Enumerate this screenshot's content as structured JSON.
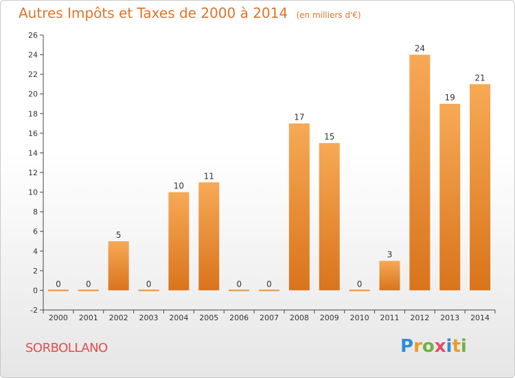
{
  "header": {
    "title": "Autres Impôts et Taxes de 2000 à 2014",
    "unit": "(en milliers d'€)"
  },
  "footer": {
    "commune": "SORBOLLANO",
    "logo_text": "Proxiti"
  },
  "colors": {
    "bar_top": "#f7a955",
    "bar_bottom": "#d9741c",
    "title": "#e0742a",
    "commune": "#e24c4c"
  },
  "chart_data": {
    "type": "bar",
    "title": "Autres Impôts et Taxes de 2000 à 2014",
    "subtitle": "(en milliers d'€)",
    "xlabel": "",
    "ylabel": "",
    "categories": [
      "2000",
      "2001",
      "2002",
      "2003",
      "2004",
      "2005",
      "2006",
      "2007",
      "2008",
      "2009",
      "2010",
      "2011",
      "2012",
      "2013",
      "2014"
    ],
    "values": [
      0,
      0,
      5,
      0,
      10,
      11,
      0,
      0,
      17,
      15,
      0,
      3,
      24,
      19,
      21
    ],
    "ylim": [
      -2,
      26
    ],
    "yticks": [
      -2,
      0,
      2,
      4,
      6,
      8,
      10,
      12,
      14,
      16,
      18,
      20,
      22,
      24,
      26
    ],
    "grid": false
  }
}
